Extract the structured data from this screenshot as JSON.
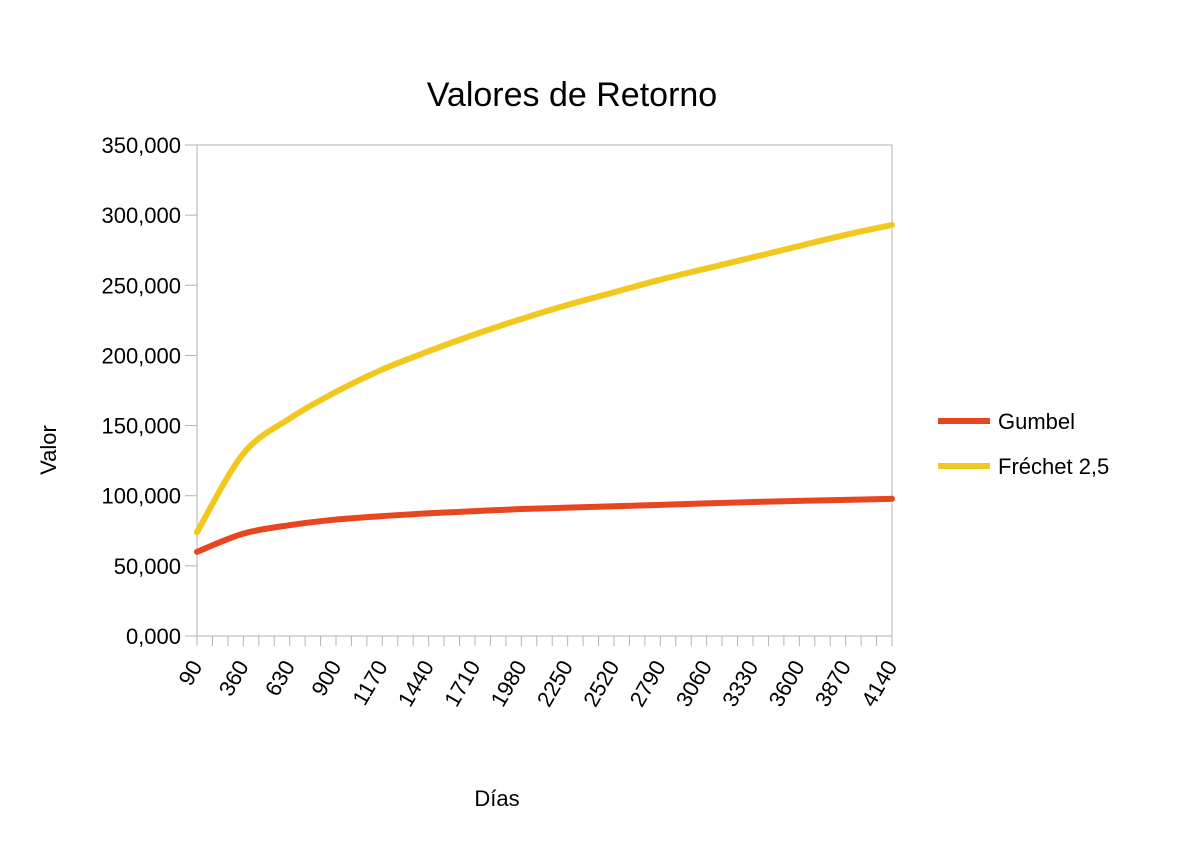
{
  "chart_data": {
    "type": "line",
    "title": "Valores de Retorno",
    "xlabel": "Días",
    "ylabel": "Valor",
    "x_tick_labels": [
      "90",
      "360",
      "630",
      "900",
      "1170",
      "1440",
      "1710",
      "1980",
      "2250",
      "2520",
      "2790",
      "3060",
      "3330",
      "3600",
      "3870",
      "4140"
    ],
    "xlim": [
      90,
      4140
    ],
    "ylim": [
      0,
      350000
    ],
    "y_tick_labels": [
      "0,000",
      "50,000",
      "100,000",
      "150,000",
      "200,000",
      "250,000",
      "300,000",
      "350,000"
    ],
    "y_ticks": [
      0,
      50000,
      100000,
      150000,
      200000,
      250000,
      300000,
      350000
    ],
    "grid": false,
    "legend_position": "right",
    "x": [
      90,
      360,
      630,
      900,
      1170,
      1440,
      1710,
      1980,
      2250,
      2520,
      2790,
      3060,
      3330,
      3600,
      3870,
      4140
    ],
    "series": [
      {
        "name": "Gumbel",
        "color": "#e8461e",
        "values": [
          60000,
          73000,
          79000,
          83000,
          85500,
          87500,
          89000,
          90500,
          91500,
          92500,
          93500,
          94500,
          95500,
          96300,
          97000,
          97800
        ]
      },
      {
        "name": "Fréchet 2,5",
        "color": "#f2c81e",
        "values": [
          74000,
          130000,
          155000,
          174000,
          190000,
          203000,
          215000,
          226000,
          236000,
          245000,
          254000,
          262000,
          270000,
          278000,
          286000,
          293000
        ]
      }
    ]
  }
}
